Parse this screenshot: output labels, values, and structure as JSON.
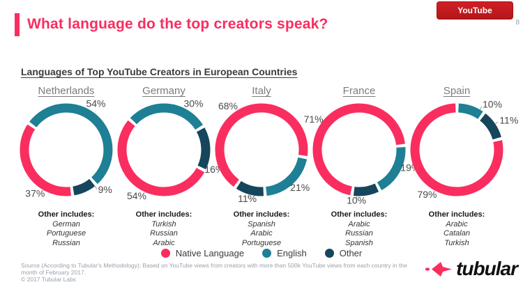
{
  "slide": {
    "page_number": "8",
    "header": {
      "title": "What language do the top creators speak?",
      "platform_badge": "YouTube"
    },
    "chart_title": "Languages of Top YouTube Creators in European Countries",
    "other_includes_label": "Other includes:",
    "footer": {
      "source_line1": "Source (According to Tubular's Methodology): Based on YouTube views from creators with more than 500k YouTube views from each country in the",
      "source_line2": "month of February 2017.",
      "copyright": "© 2017 Tubular Labs",
      "logo_text": "tubular"
    },
    "colors": {
      "accent_pink": "#FA2D5F",
      "badge_red": "#C21E24",
      "teal": "#1E7F95",
      "dark_navy": "#16465C",
      "label_gray": "#4A4A4A"
    }
  },
  "chart_data": {
    "type": "donut",
    "title": "Languages of Top YouTube Creators in European Countries",
    "unit": "%",
    "legend_position": "bottom-center",
    "legend": [
      {
        "key": "native",
        "label": "Native Language",
        "color": "#FA2D5F"
      },
      {
        "key": "english",
        "label": "English",
        "color": "#1E7F95"
      },
      {
        "key": "other",
        "label": "Other",
        "color": "#16465C"
      }
    ],
    "countries": [
      {
        "name": "Netherlands",
        "values": {
          "native": 37,
          "english": 54,
          "other": 9
        },
        "other_includes": [
          "German",
          "Portuguese",
          "Russian"
        ],
        "rotation": 172,
        "label_angles": {
          "native": 215,
          "english": 33,
          "other": 142
        }
      },
      {
        "name": "Germany",
        "values": {
          "native": 54,
          "english": 30,
          "other": 16
        },
        "other_includes": [
          "Turkish",
          "Russian",
          "Arabic"
        ],
        "rotation": 117,
        "label_angles": {
          "native": 210,
          "english": 33,
          "other": 112
        }
      },
      {
        "name": "Italy",
        "values": {
          "native": 68,
          "english": 21,
          "other": 11
        },
        "other_includes": [
          "Spanish",
          "Arabic",
          "Portuguese"
        ],
        "rotation": 215,
        "label_angles": {
          "native": 322,
          "english": 135,
          "other": 196
        }
      },
      {
        "name": "France",
        "values": {
          "native": 71,
          "english": 19,
          "other": 10
        },
        "other_includes": [
          "Arabic",
          "Russian",
          "Spanish"
        ],
        "rotation": 189,
        "label_angles": {
          "native": 303,
          "english": 110,
          "other": 183
        }
      },
      {
        "name": "Spain",
        "values": {
          "native": 79,
          "english": 10,
          "other": 11
        },
        "other_includes": [
          "Arabic",
          "Catalan",
          "Turkish"
        ],
        "rotation": 76,
        "label_angles": {
          "native": 213,
          "english": 30,
          "other": 56
        }
      }
    ]
  }
}
